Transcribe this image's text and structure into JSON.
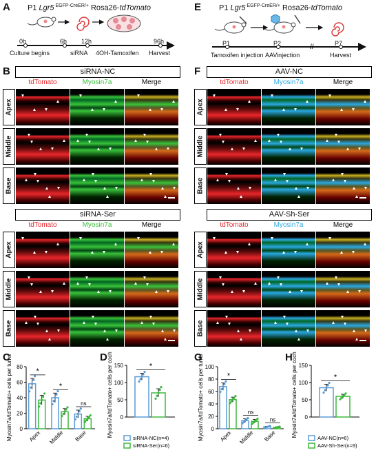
{
  "panel_letters": {
    "A": "A",
    "B": "B",
    "C": "C",
    "D": "D",
    "E": "E",
    "F": "F",
    "G": "G",
    "H": "H"
  },
  "panelA": {
    "title_prefix": "P1 ",
    "title_gene": "Lgr5",
    "title_sup": " EGFP-CreER/+",
    "title_suffix": " Rosa26-",
    "title_reporter": "tdTomato",
    "ticks": [
      "0h",
      "6h",
      "12h",
      "96h"
    ],
    "steps": [
      "Culture begins",
      "siRNA",
      "4OH-Tamoxifen",
      "Harvest"
    ]
  },
  "panelE": {
    "title_prefix": "P1 ",
    "title_gene": "Lgr5",
    "title_sup": " EGFP-CreER/+",
    "title_suffix": " Rosa26-",
    "title_reporter": "tdTomato",
    "ages": [
      "P1",
      "P2",
      "P7"
    ],
    "steps": [
      "Tamoxifen injection",
      "AAVinjection",
      "Harvest"
    ]
  },
  "panelB": {
    "groups": [
      {
        "title": "siRNA-NC",
        "cols": [
          "tdTomato",
          "Myosin7a",
          "Merge"
        ],
        "rows": [
          "Apex",
          "Middle",
          "Base"
        ]
      },
      {
        "title": "siRNA-Ser",
        "cols": [
          "tdTomato",
          "Myosin7a",
          "Merge"
        ],
        "rows": [
          "Apex",
          "Middle",
          "Base"
        ]
      }
    ]
  },
  "panelF": {
    "groups": [
      {
        "title": "AAV-NC",
        "cols": [
          "tdTomato",
          "Myosin7a",
          "Merge"
        ],
        "rows": [
          "Apex",
          "Middle",
          "Base"
        ]
      },
      {
        "title": "AAV-Sh-Ser",
        "cols": [
          "tdTomato",
          "Myosin7a",
          "Merge"
        ],
        "rows": [
          "Apex",
          "Middle",
          "Base"
        ]
      }
    ]
  },
  "colors": {
    "nc": "#5b9bd5",
    "ser": "#3cb83c",
    "red": "#e8262b",
    "green": "#39c13a",
    "cyan": "#2aa8e0"
  },
  "chart_data": [
    {
      "id": "C",
      "type": "bar",
      "ylabel": "Myosin7a/tdTomato+ cells per turns",
      "categories": [
        "Apex",
        "Middle",
        "Base"
      ],
      "ylim": [
        0,
        80
      ],
      "yticks": [
        0,
        20,
        40,
        60,
        80
      ],
      "series": [
        {
          "name": "siRNA-NC",
          "values": [
            58,
            40,
            19
          ],
          "err": [
            7,
            6,
            5
          ]
        },
        {
          "name": "siRNA-Ser",
          "values": [
            37,
            22,
            13
          ],
          "err": [
            6,
            4,
            3
          ]
        }
      ],
      "annotations": [
        "*",
        "*",
        "ns"
      ]
    },
    {
      "id": "D",
      "type": "bar",
      "ylabel": "Myosin7a/tdTomato+ cells per cochlea",
      "categories": [
        ""
      ],
      "ylim": [
        0,
        150
      ],
      "yticks": [
        0,
        50,
        100,
        150
      ],
      "series": [
        {
          "name": "siRNA-NC(n=4)",
          "values": [
            117
          ],
          "err": [
            10
          ]
        },
        {
          "name": "siRNA-Ser(n=6)",
          "values": [
            70
          ],
          "err": [
            12
          ]
        }
      ],
      "annotations": [
        "*"
      ]
    },
    {
      "id": "G",
      "type": "bar",
      "ylabel": "Myosin7a/tdTomato+ cells per turns",
      "categories": [
        "Apex",
        "Middle",
        "Base"
      ],
      "ylim": [
        0,
        100
      ],
      "yticks": [
        0,
        20,
        40,
        60,
        80,
        100
      ],
      "series": [
        {
          "name": "AAV-NC",
          "values": [
            68,
            13,
            3
          ],
          "err": [
            6,
            3,
            1
          ]
        },
        {
          "name": "AAV-Sh-Ser",
          "values": [
            47,
            12,
            2
          ],
          "err": [
            4,
            3,
            1
          ]
        }
      ],
      "annotations": [
        "*",
        "ns",
        "ns"
      ]
    },
    {
      "id": "H",
      "type": "bar",
      "ylabel": "Myosin7a/tdTomato+ cells per cochlea",
      "categories": [
        ""
      ],
      "ylim": [
        0,
        150
      ],
      "yticks": [
        0,
        50,
        100,
        150
      ],
      "series": [
        {
          "name": "AAV-NC(n=6)",
          "values": [
            85
          ],
          "err": [
            10
          ]
        },
        {
          "name": "AAV-Sh-Ser(n=9)",
          "values": [
            60
          ],
          "err": [
            6
          ]
        }
      ],
      "annotations": [
        "*"
      ]
    }
  ]
}
